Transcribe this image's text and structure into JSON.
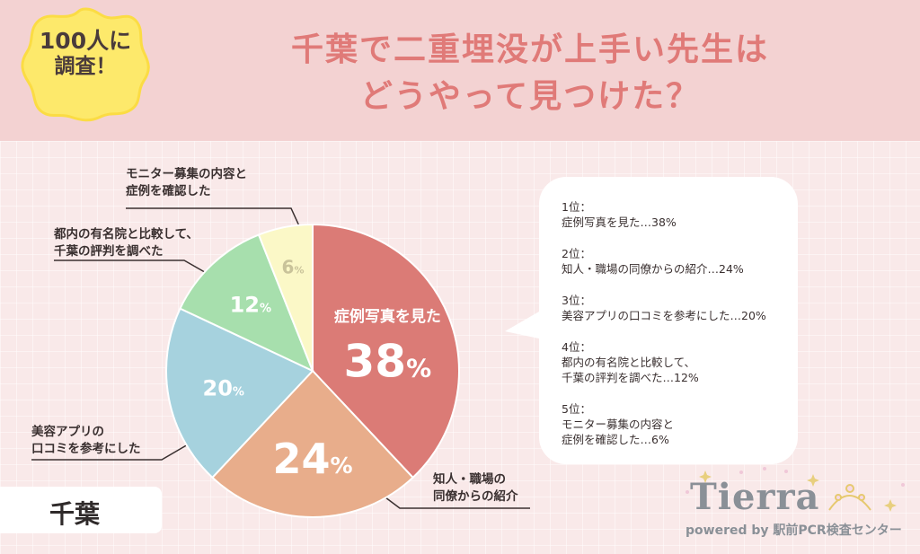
{
  "badge": {
    "line1": "100人に",
    "line2": "調査！"
  },
  "title": {
    "line1": "千葉で二重埋没が上手い先生は",
    "line2": "どうやって見つけた？"
  },
  "region_tag": "千葉",
  "colors": {
    "header_bg": "#f3d2d2",
    "content_bg": "#f9e9e9",
    "title": "#e07a78",
    "badge": "#fde96b",
    "slice_1": "#db7b76",
    "slice_2": "#e8ad8b",
    "slice_3": "#a6d2de",
    "slice_4": "#a7dfad",
    "slice_5": "#fbf8c7"
  },
  "chart_data": {
    "type": "pie",
    "title": "千葉で二重埋没が上手い先生はどうやって見つけた？",
    "unit": "%",
    "categories": [
      "症例写真を見た",
      "知人・職場の同僚からの紹介",
      "美容アプリの口コミを参考にした",
      "都内の有名院と比較して、千葉の評判を調べた",
      "モニター募集の内容と症例を確認した"
    ],
    "values": [
      38,
      24,
      20,
      12,
      6
    ],
    "inner_title": "症例写真を見た",
    "callouts": [
      {
        "rank": 2,
        "lines": [
          "知人・職場の",
          "同僚からの紹介"
        ]
      },
      {
        "rank": 3,
        "lines": [
          "美容アプリの",
          "口コミを参考にした"
        ]
      },
      {
        "rank": 4,
        "lines": [
          "都内の有名院と比較して、",
          "千葉の評判を調べた"
        ]
      },
      {
        "rank": 5,
        "lines": [
          "モニター募集の内容と",
          "症例を確認した"
        ]
      }
    ]
  },
  "legend": [
    {
      "rank": "1位：",
      "lines": [
        "症例写真を見た…38%"
      ]
    },
    {
      "rank": "2位：",
      "lines": [
        "知人・職場の同僚からの紹介…24%"
      ]
    },
    {
      "rank": "3位：",
      "lines": [
        "美容アプリの口コミを参考にした…20%"
      ]
    },
    {
      "rank": "4位：",
      "lines": [
        "都内の有名院と比較して、",
        "千葉の評判を調べた…12%"
      ]
    },
    {
      "rank": "5位：",
      "lines": [
        "モニター募集の内容と",
        "症例を確認した…6%"
      ]
    }
  ],
  "logo": {
    "name": "Tierra",
    "tagline": "powered by 駅前PCR検査センター"
  }
}
